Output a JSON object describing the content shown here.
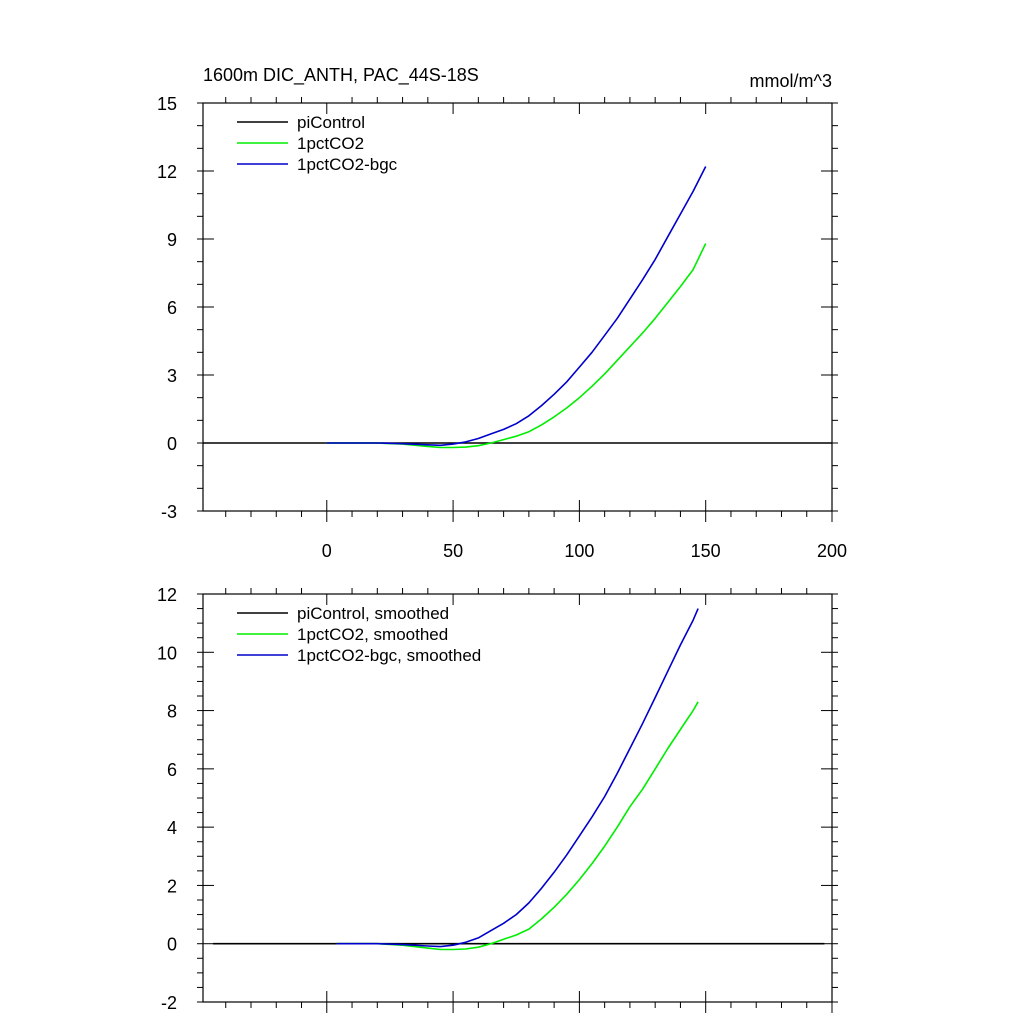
{
  "chart_data": [
    {
      "type": "line",
      "title": "1600m DIC_ANTH, PAC_44S-18S",
      "units": "mmol/m^3",
      "xlim": [
        -49,
        200
      ],
      "ylim": [
        -3,
        15
      ],
      "xticks": [
        0,
        50,
        100,
        150,
        200
      ],
      "xtick_labels": [
        "0",
        "50",
        "100",
        "150",
        "200"
      ],
      "yticks": [
        -3,
        0,
        3,
        6,
        9,
        12,
        15
      ],
      "ytick_labels": [
        "-3",
        "0",
        "3",
        "6",
        "9",
        "12",
        "15"
      ],
      "grid": false,
      "legend_position": "top-left",
      "series": [
        {
          "name": "piControl",
          "color": "#000000",
          "x": [
            -49,
            200
          ],
          "y": [
            0,
            0
          ]
        },
        {
          "name": "1pctCO2",
          "color": "#00ee00",
          "x": [
            0,
            20,
            30,
            40,
            45,
            50,
            55,
            60,
            65,
            70,
            75,
            80,
            85,
            90,
            95,
            100,
            105,
            110,
            115,
            120,
            125,
            130,
            135,
            140,
            145,
            150
          ],
          "y": [
            0,
            0,
            -0.05,
            -0.15,
            -0.2,
            -0.2,
            -0.18,
            -0.12,
            0.0,
            0.15,
            0.3,
            0.5,
            0.8,
            1.15,
            1.55,
            2.0,
            2.5,
            3.05,
            3.65,
            4.25,
            4.85,
            5.5,
            6.2,
            6.9,
            7.65,
            8.8
          ]
        },
        {
          "name": "1pctCO2-bgc",
          "color": "#0000cc",
          "x": [
            0,
            20,
            30,
            40,
            45,
            50,
            55,
            60,
            65,
            70,
            75,
            80,
            85,
            90,
            95,
            100,
            105,
            110,
            115,
            120,
            125,
            130,
            135,
            140,
            145,
            150
          ],
          "y": [
            0,
            0,
            -0.03,
            -0.08,
            -0.1,
            -0.05,
            0.05,
            0.2,
            0.4,
            0.6,
            0.85,
            1.2,
            1.65,
            2.15,
            2.7,
            3.35,
            4.0,
            4.75,
            5.5,
            6.35,
            7.2,
            8.1,
            9.1,
            10.1,
            11.1,
            12.2
          ]
        }
      ]
    },
    {
      "type": "line",
      "title": "",
      "xlim": [
        -49,
        200
      ],
      "ylim": [
        -2,
        12
      ],
      "xticks": [
        0,
        50,
        100,
        150,
        200
      ],
      "xtick_labels": [],
      "yticks": [
        -2,
        0,
        2,
        4,
        6,
        8,
        10,
        12
      ],
      "ytick_labels": [
        "-2",
        "0",
        "2",
        "4",
        "6",
        "8",
        "10",
        "12"
      ],
      "grid": false,
      "legend_position": "top-left",
      "series": [
        {
          "name": "piControl, smoothed",
          "color": "#000000",
          "x": [
            -45,
            197
          ],
          "y": [
            0,
            0
          ]
        },
        {
          "name": "1pctCO2, smoothed",
          "color": "#00ee00",
          "x": [
            4,
            20,
            30,
            40,
            45,
            50,
            55,
            60,
            65,
            70,
            75,
            80,
            85,
            90,
            95,
            100,
            105,
            110,
            115,
            120,
            125,
            130,
            135,
            140,
            145,
            147
          ],
          "y": [
            0,
            0,
            -0.05,
            -0.15,
            -0.2,
            -0.2,
            -0.18,
            -0.12,
            0.0,
            0.15,
            0.3,
            0.5,
            0.85,
            1.25,
            1.7,
            2.2,
            2.75,
            3.35,
            4.0,
            4.7,
            5.3,
            6.0,
            6.7,
            7.35,
            8.0,
            8.3
          ]
        },
        {
          "name": "1pctCO2-bgc, smoothed",
          "color": "#0000cc",
          "x": [
            4,
            20,
            30,
            40,
            45,
            50,
            55,
            60,
            65,
            70,
            75,
            80,
            85,
            90,
            95,
            100,
            105,
            110,
            115,
            120,
            125,
            130,
            135,
            140,
            145,
            147
          ],
          "y": [
            0,
            0,
            -0.03,
            -0.08,
            -0.1,
            -0.05,
            0.05,
            0.2,
            0.45,
            0.7,
            1.0,
            1.4,
            1.9,
            2.45,
            3.05,
            3.7,
            4.35,
            5.05,
            5.85,
            6.7,
            7.55,
            8.45,
            9.35,
            10.25,
            11.1,
            11.5
          ]
        }
      ]
    }
  ]
}
